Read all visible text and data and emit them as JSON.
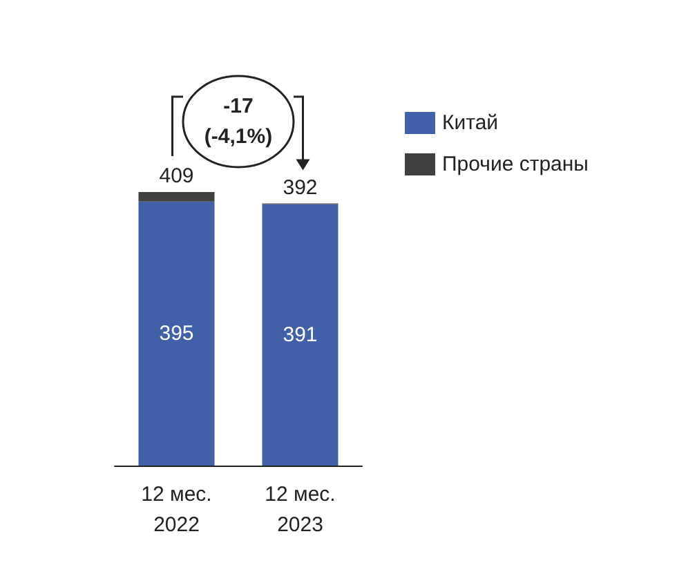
{
  "chart_data": {
    "type": "bar",
    "stacked": true,
    "categories": [
      "12 мес.\n2022",
      "12 мес.\n2023"
    ],
    "series": [
      {
        "name": "Китай",
        "color": "#4060a8",
        "values": [
          395,
          391
        ],
        "value_labels": [
          "395",
          "391"
        ]
      },
      {
        "name": "Прочие страны",
        "color": "#404040",
        "values": [
          14,
          1
        ],
        "value_labels": [
          null,
          null
        ]
      }
    ],
    "totals": [
      "409",
      "392"
    ],
    "annotations": [
      "-17\n(-4,1%)"
    ],
    "legend": "right"
  }
}
